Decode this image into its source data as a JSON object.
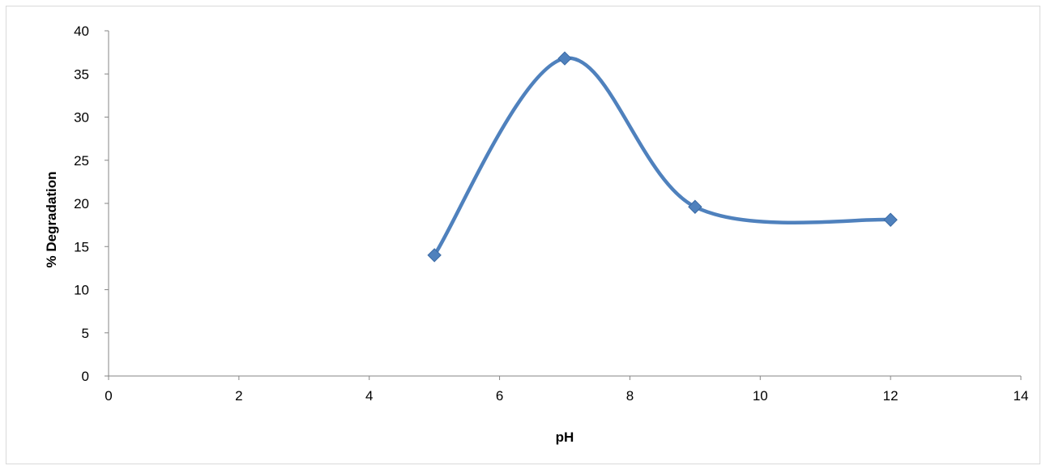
{
  "chart_data": {
    "type": "scatter",
    "title": "",
    "xlabel": "pH",
    "ylabel": "% Degradation",
    "xlim": [
      0,
      14
    ],
    "ylim": [
      0,
      40
    ],
    "xticks": [
      "0",
      "2",
      "4",
      "6",
      "8",
      "10",
      "12",
      "14"
    ],
    "yticks": [
      "0",
      "5",
      "10",
      "15",
      "20",
      "25",
      "30",
      "35",
      "40"
    ],
    "grid": false,
    "legend": "none",
    "smooth_line": true,
    "series": [
      {
        "x": [
          5,
          7,
          9,
          12
        ],
        "y": [
          14,
          36.8,
          19.6,
          18.1
        ],
        "color": "#4f81bd",
        "marker": "diamond"
      }
    ]
  }
}
